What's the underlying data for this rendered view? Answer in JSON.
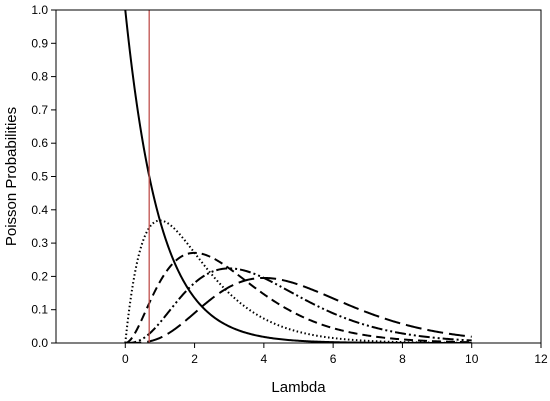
{
  "chart_data": {
    "type": "line",
    "title": "",
    "xlabel": "Lambda",
    "ylabel": "Poisson Probabilities",
    "xlim": [
      -2,
      12
    ],
    "ylim": [
      0,
      1.0
    ],
    "xticks": [
      0,
      2,
      4,
      6,
      8,
      10,
      12
    ],
    "xtick_labels": [
      "0",
      "2",
      "4",
      "6",
      "8",
      "10",
      "12"
    ],
    "yticks": [
      0,
      0.1,
      0.2,
      0.3,
      0.4,
      0.5,
      0.6,
      0.7,
      0.8,
      0.9,
      1.0
    ],
    "ytick_labels": [
      "0.0",
      "0.1",
      "0.2",
      "0.3",
      "0.4",
      "0.5",
      "0.6",
      "0.7",
      "0.8",
      "0.9",
      "1.0"
    ],
    "grid": false,
    "legend": "none",
    "vertical_line": {
      "x": 0.69,
      "color": "#c0504d"
    },
    "curve_domain": [
      0,
      10
    ],
    "series": [
      {
        "k": 0,
        "dash": "solid",
        "color": "#000000",
        "x": [
          0,
          0.5,
          1,
          2,
          3,
          4,
          5,
          6,
          8,
          10
        ],
        "values": [
          1.0,
          0.607,
          0.368,
          0.135,
          0.05,
          0.018,
          0.007,
          0.002,
          0.0,
          0.0
        ]
      },
      {
        "k": 1,
        "dash": "dotted",
        "color": "#000000",
        "x": [
          0,
          0.5,
          1,
          2,
          3,
          4,
          5,
          6,
          8,
          10
        ],
        "values": [
          0.0,
          0.303,
          0.368,
          0.271,
          0.149,
          0.073,
          0.034,
          0.015,
          0.003,
          0.0
        ]
      },
      {
        "k": 2,
        "dash": "short-dash",
        "color": "#000000",
        "x": [
          0,
          1,
          2,
          3,
          4,
          5,
          6,
          8,
          10
        ],
        "values": [
          0.0,
          0.184,
          0.271,
          0.224,
          0.147,
          0.084,
          0.045,
          0.011,
          0.002
        ]
      },
      {
        "k": 3,
        "dash": "dash-dot-dot",
        "color": "#000000",
        "x": [
          0,
          1,
          2,
          3,
          4,
          5,
          6,
          8,
          10
        ],
        "values": [
          0.0,
          0.061,
          0.18,
          0.224,
          0.195,
          0.14,
          0.089,
          0.029,
          0.008
        ]
      },
      {
        "k": 4,
        "dash": "long-dash",
        "color": "#000000",
        "x": [
          0,
          1,
          2,
          3,
          4,
          5,
          6,
          8,
          10
        ],
        "values": [
          0.0,
          0.015,
          0.09,
          0.168,
          0.195,
          0.175,
          0.134,
          0.057,
          0.019
        ]
      }
    ]
  }
}
